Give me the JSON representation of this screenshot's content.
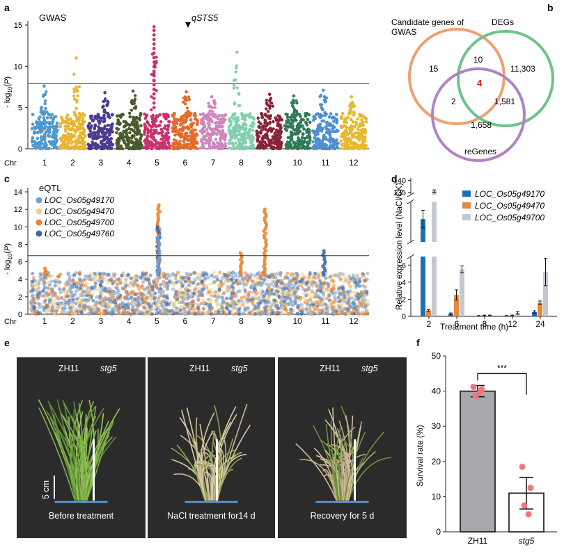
{
  "panels": {
    "a": {
      "letter": "a",
      "label": "GWAS",
      "peak_label": "qSTS5",
      "ylabel": "- log10(P)",
      "xlabel": "Chr",
      "y_ticks": [
        "0",
        "5",
        "10",
        "15"
      ],
      "chromosomes": [
        "1",
        "2",
        "3",
        "4",
        "5",
        "6",
        "7",
        "8",
        "9",
        "10",
        "11",
        "12"
      ],
      "threshold": 7.9,
      "colors": [
        "#4f98cf",
        "#e9b530",
        "#4c3a8c",
        "#4a5a2c",
        "#c8326d",
        "#e36b2b",
        "#cf86be",
        "#83cfb0",
        "#8a2336",
        "#2f7a58",
        "#4f8fcf",
        "#e8b830"
      ]
    },
    "b": {
      "letter": "b",
      "set_gwas": "Candidate genes of",
      "set_gwas_2": "GWAS",
      "set_degs": "DEGs",
      "set_regenes": "reGenes",
      "gwas_only": "15",
      "gwas_degs": "10",
      "degs_only": "11,303",
      "all_three": "4",
      "gwas_re": "2",
      "degs_re": "1,581",
      "re_only": "1,658",
      "colors": {
        "gwas": "#f0a070",
        "degs": "#6cc48a",
        "re": "#b083c4",
        "center": "#cc1f1f"
      }
    },
    "c": {
      "letter": "c",
      "label": "eQTL",
      "ylabel": "- log10(P)",
      "xlabel": "Chr",
      "y_ticks": [
        "0",
        "2",
        "4",
        "6",
        "8",
        "10",
        "12",
        "14"
      ],
      "threshold": 6.7,
      "legend": [
        {
          "name": "LOC_Os05g49170",
          "color": "#6fa0d6"
        },
        {
          "name": "LOC_Os05g49470",
          "color": "#f2d08c"
        },
        {
          "name": "LOC_Os05g49700",
          "color": "#e8822e"
        },
        {
          "name": "LOC_Os05g49760",
          "color": "#3f66a8"
        }
      ]
    },
    "d": {
      "letter": "d",
      "xlabel": "Treatment time (h)",
      "ylabel": "Relative expression level (NaCl/CK)",
      "y_ticks_low": [
        "0",
        "2",
        "4",
        "6"
      ],
      "y_ticks_high": [
        "135",
        "140"
      ],
      "series_colors": [
        "#1f6fb4",
        "#e5893c",
        "#c4c8d0"
      ]
    },
    "e": {
      "letter": "e",
      "photos": [
        {
          "left": "ZH11",
          "right": "stg5",
          "caption": "Before treatment"
        },
        {
          "left": "ZH11",
          "right": "stg5",
          "caption": "NaCl treatment for14 d"
        },
        {
          "left": "ZH11",
          "right": "stg5",
          "caption": "Recovery for 5 d"
        }
      ],
      "scale_label": "5 cm"
    },
    "f": {
      "letter": "f",
      "ylabel": "Survival rate (%)",
      "y_ticks": [
        "0",
        "10",
        "20",
        "30",
        "40",
        "50"
      ],
      "significance": "***"
    }
  },
  "chart_data": [
    {
      "type": "scatter",
      "title": "GWAS",
      "xlabel": "Chr",
      "ylabel": "- log10(P)",
      "ylim": [
        0,
        15
      ],
      "categories": [
        "1",
        "2",
        "3",
        "4",
        "5",
        "6",
        "7",
        "8",
        "9",
        "10",
        "11",
        "12"
      ],
      "threshold": 7.9,
      "peak_max_per_chr": [
        7.6,
        11.0,
        6.8,
        7.0,
        14.8,
        6.9,
        6.3,
        11.7,
        6.6,
        6.4,
        7.1,
        6.3
      ],
      "annotation": "qSTS5"
    },
    {
      "type": "venn",
      "sets": [
        "Candidate genes of GWAS",
        "DEGs",
        "reGenes"
      ],
      "regions": {
        "GWAS only": 15,
        "GWAS∩DEGs": 10,
        "DEGs only": 11303,
        "GWAS∩DEGs∩reGenes": 4,
        "GWAS∩reGenes": 2,
        "DEGs∩reGenes": 1581,
        "reGenes only": 1658
      }
    },
    {
      "type": "scatter",
      "title": "eQTL",
      "xlabel": "Chr",
      "ylabel": "- log10(P)",
      "ylim": [
        0,
        14
      ],
      "categories": [
        "1",
        "2",
        "3",
        "4",
        "5",
        "6",
        "7",
        "8",
        "9",
        "10",
        "11",
        "12"
      ],
      "threshold": 6.7,
      "series": [
        {
          "name": "LOC_Os05g49170",
          "peak": 9.0
        },
        {
          "name": "LOC_Os05g49470",
          "peak": 12.4
        },
        {
          "name": "LOC_Os05g49700",
          "peak": 12.7
        },
        {
          "name": "LOC_Os05g49760",
          "peak": 10.1
        }
      ]
    },
    {
      "type": "bar",
      "xlabel": "Treatment time (h)",
      "ylabel": "Relative expression level (NaCl/CK)",
      "categories": [
        "2",
        "6",
        "8",
        "12",
        "24"
      ],
      "series": [
        {
          "name": "LOC_Os05g49170",
          "values": [
            20,
            0.3,
            0.05,
            0.05,
            0.5
          ],
          "errors": [
            5,
            0.1,
            0.05,
            0.05,
            0.15
          ]
        },
        {
          "name": "LOC_Os05g49470",
          "values": [
            0.7,
            2.5,
            0.1,
            0.1,
            1.6
          ],
          "errors": [
            0.1,
            0.6,
            0.05,
            0.05,
            0.2
          ]
        },
        {
          "name": "LOC_Os05g49700",
          "values": [
            135.5,
            5.5,
            0.1,
            0.4,
            5.2
          ],
          "errors": [
            0.5,
            0.4,
            0.05,
            0.15,
            1.6
          ]
        }
      ],
      "axis_break": [
        7,
        134
      ],
      "ylim": [
        0,
        140
      ]
    },
    {
      "type": "bar",
      "ylabel": "Survival rate (%)",
      "categories": [
        "ZH11",
        "stg5"
      ],
      "values": [
        40,
        11
      ],
      "errors": [
        1.6,
        4.5
      ],
      "points": [
        [
          41.2,
          40.5,
          38.7,
          39.5
        ],
        [
          18.5,
          12.5,
          7.5,
          5.0
        ]
      ],
      "ylim": [
        0,
        50
      ],
      "significance": "***"
    }
  ]
}
